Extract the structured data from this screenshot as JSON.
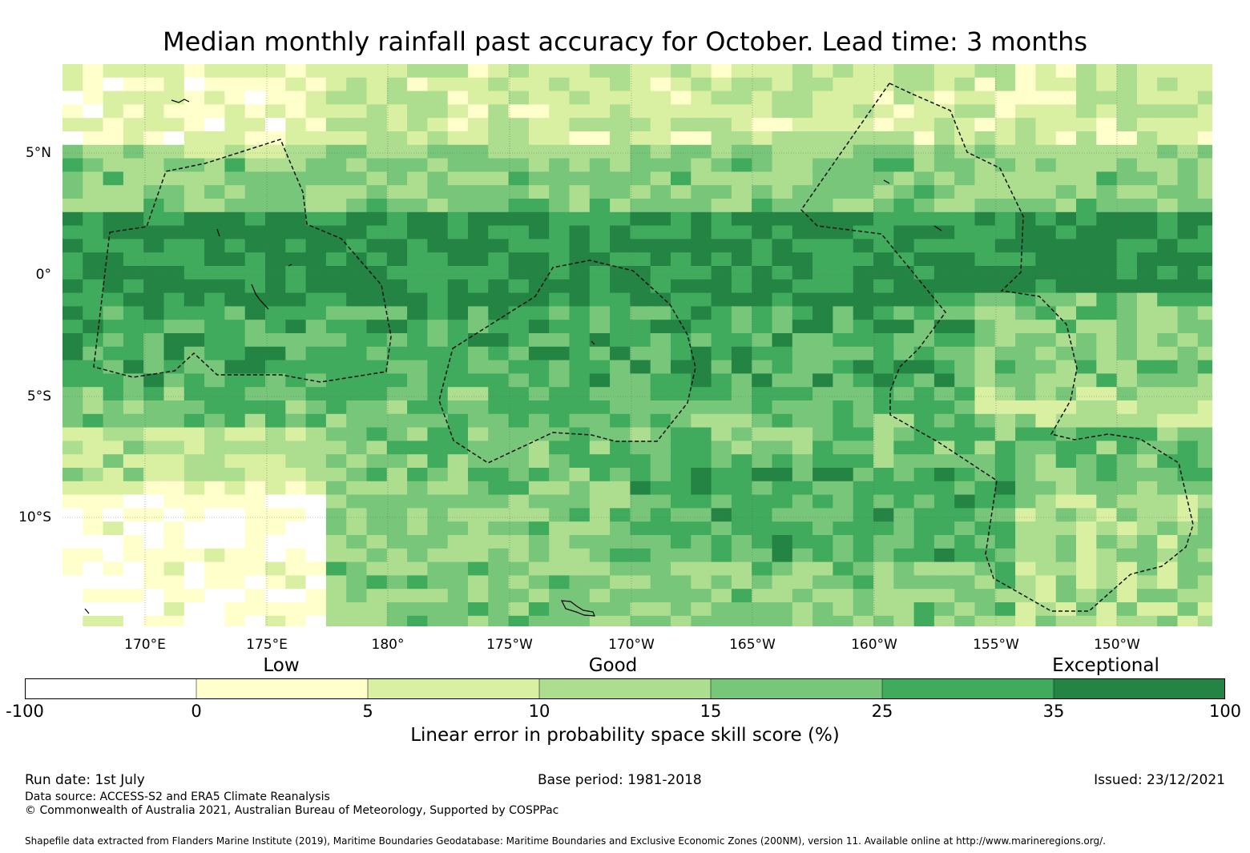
{
  "title": "Median monthly rainfall past accuracy for October. Lead time: 3 months",
  "map": {
    "lat_labels": [
      "5°N",
      "0°",
      "5°S",
      "10°S"
    ],
    "lon_labels": [
      "170°E",
      "175°E",
      "180°",
      "175°W",
      "170°W",
      "165°W",
      "160°W",
      "155°W",
      "150°W"
    ],
    "extent": {
      "lon_min": 166.6,
      "lon_max": 213.9,
      "lat_min": -14.5,
      "lat_max": 8.7
    },
    "grid_lines": true,
    "boundaries": "dashed"
  },
  "legend": {
    "categories": [
      "Low",
      "Good",
      "Exceptional"
    ],
    "ticks": [
      "-100",
      "0",
      "5",
      "10",
      "15",
      "25",
      "35",
      "100"
    ],
    "colors": [
      "#ffffff",
      "#ffffcc",
      "#d9f0a3",
      "#addd8e",
      "#78c679",
      "#41ab5d",
      "#238443"
    ],
    "label": "Linear error in probability space skill score (%)"
  },
  "footer": {
    "run_date": "Run date: 1st July",
    "base_period": "Base period: 1981-2018",
    "issued": "Issued: 23/12/2021",
    "data_source": "Data source: ACCESS-S2 and ERA5 Climate Reanalysis",
    "copyright": "© Commonwealth of Australia 2021, Australian Bureau of Meteorology, Supported by COSPPac",
    "shapefile": "Shapefile data extracted from Flanders Marine Institute (2019), Maritime Boundaries Geodatabase: Maritime Boundaries and Exclusive Economic Zones (200NM), version 11. Available online at http://www.marineregions.org/."
  }
}
